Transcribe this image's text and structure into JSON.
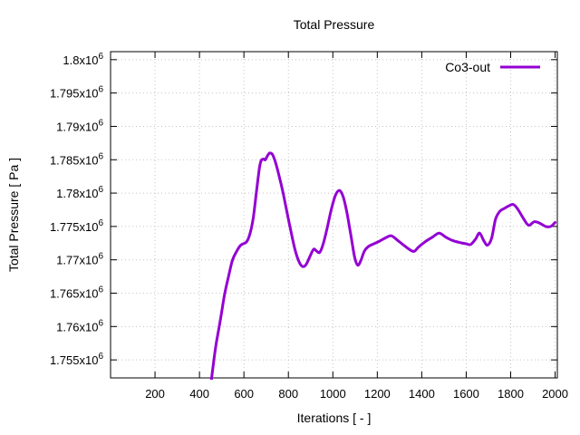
{
  "colors": {
    "line": "#9400D3",
    "grid": "#c4c4c4",
    "border": "#000000",
    "text": "#000000",
    "background": "#ffffff"
  },
  "chart_data": {
    "type": "line",
    "title": "Total Pressure",
    "xlabel": "Iterations [ - ]",
    "ylabel": "Total Pressure [ Pa ]",
    "grid": true,
    "legend_position": "top-right-inside",
    "xlim": [
      0,
      2010
    ],
    "ylim": [
      1752300,
      1801200
    ],
    "x_ticks": [
      200,
      400,
      600,
      800,
      1000,
      1200,
      1400,
      1600,
      1800,
      2000
    ],
    "y_ticks": [
      {
        "value": 1755000,
        "label": "1.755x10^6"
      },
      {
        "value": 1760000,
        "label": "1.76x10^6"
      },
      {
        "value": 1765000,
        "label": "1.765x10^6"
      },
      {
        "value": 1770000,
        "label": "1.77x10^6"
      },
      {
        "value": 1775000,
        "label": "1.775x10^6"
      },
      {
        "value": 1780000,
        "label": "1.78x10^6"
      },
      {
        "value": 1785000,
        "label": "1.785x10^6"
      },
      {
        "value": 1790000,
        "label": "1.79x10^6"
      },
      {
        "value": 1795000,
        "label": "1.795x10^6"
      },
      {
        "value": 1800000,
        "label": "1.8x10^6"
      }
    ],
    "series": [
      {
        "name": "Co3-out",
        "color": "#9400D3",
        "points": [
          [
            450,
            1750900
          ],
          [
            461,
            1754000
          ],
          [
            474,
            1757200
          ],
          [
            489,
            1760000
          ],
          [
            502,
            1762600
          ],
          [
            514,
            1765000
          ],
          [
            530,
            1767400
          ],
          [
            548,
            1769900
          ],
          [
            566,
            1771200
          ],
          [
            586,
            1772200
          ],
          [
            612,
            1772700
          ],
          [
            628,
            1774000
          ],
          [
            642,
            1776300
          ],
          [
            656,
            1780100
          ],
          [
            670,
            1783800
          ],
          [
            678,
            1784900
          ],
          [
            688,
            1785100
          ],
          [
            696,
            1785000
          ],
          [
            706,
            1785600
          ],
          [
            716,
            1786000
          ],
          [
            728,
            1785800
          ],
          [
            742,
            1784600
          ],
          [
            758,
            1782600
          ],
          [
            775,
            1780200
          ],
          [
            792,
            1777400
          ],
          [
            810,
            1774500
          ],
          [
            830,
            1771500
          ],
          [
            848,
            1769700
          ],
          [
            864,
            1769000
          ],
          [
            880,
            1769300
          ],
          [
            898,
            1770600
          ],
          [
            914,
            1771600
          ],
          [
            927,
            1771300
          ],
          [
            940,
            1771100
          ],
          [
            954,
            1772100
          ],
          [
            972,
            1774400
          ],
          [
            992,
            1777400
          ],
          [
            1012,
            1779700
          ],
          [
            1030,
            1780400
          ],
          [
            1046,
            1779500
          ],
          [
            1062,
            1777300
          ],
          [
            1080,
            1773900
          ],
          [
            1098,
            1770400
          ],
          [
            1112,
            1769200
          ],
          [
            1126,
            1769900
          ],
          [
            1142,
            1771300
          ],
          [
            1160,
            1772000
          ],
          [
            1185,
            1772400
          ],
          [
            1210,
            1772800
          ],
          [
            1238,
            1773300
          ],
          [
            1263,
            1773600
          ],
          [
            1292,
            1772900
          ],
          [
            1322,
            1772100
          ],
          [
            1352,
            1771400
          ],
          [
            1368,
            1771300
          ],
          [
            1385,
            1771900
          ],
          [
            1415,
            1772700
          ],
          [
            1448,
            1773400
          ],
          [
            1478,
            1774000
          ],
          [
            1508,
            1773400
          ],
          [
            1538,
            1772900
          ],
          [
            1570,
            1772600
          ],
          [
            1600,
            1772400
          ],
          [
            1620,
            1772300
          ],
          [
            1642,
            1773100
          ],
          [
            1660,
            1774000
          ],
          [
            1680,
            1772800
          ],
          [
            1696,
            1772200
          ],
          [
            1714,
            1773200
          ],
          [
            1732,
            1776100
          ],
          [
            1752,
            1777300
          ],
          [
            1772,
            1777700
          ],
          [
            1792,
            1778100
          ],
          [
            1812,
            1778300
          ],
          [
            1832,
            1777600
          ],
          [
            1852,
            1776500
          ],
          [
            1880,
            1775200
          ],
          [
            1906,
            1775700
          ],
          [
            1930,
            1775500
          ],
          [
            1958,
            1775000
          ],
          [
            1980,
            1775000
          ],
          [
            2000,
            1775600
          ]
        ]
      }
    ]
  }
}
